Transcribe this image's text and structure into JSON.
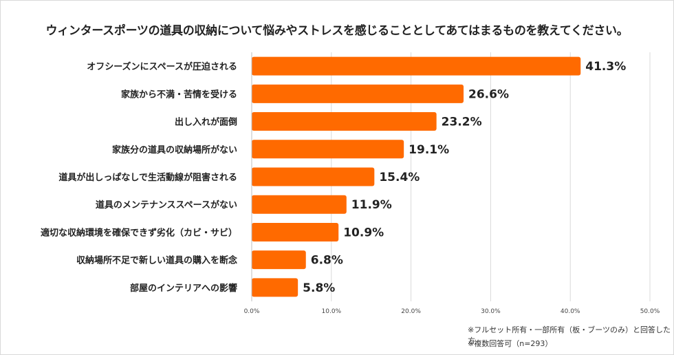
{
  "chart_data": {
    "type": "bar",
    "orientation": "horizontal",
    "title": "ウィンタースポーツの道具の収納について悩みやストレスを感じることとしてあてはまるものを教えてください。",
    "categories": [
      "オフシーズンにスペースが圧迫される",
      "家族から不満・苦情を受ける",
      "出し入れが面倒",
      "家族分の道具の収納場所がない",
      "道具が出しっぱなしで生活動線が阻害される",
      "道具のメンテナンススペースがない",
      "適切な収納環境を確保できず劣化（カビ・サビ）",
      "収納場所不足で新しい道具の購入を断念",
      "部屋のインテリアへの影響"
    ],
    "values": [
      41.3,
      26.6,
      23.2,
      19.1,
      15.4,
      11.9,
      10.9,
      6.8,
      5.8
    ],
    "value_labels": [
      "41.3%",
      "26.6%",
      "23.2%",
      "19.1%",
      "15.4%",
      "11.9%",
      "10.9%",
      "6.8%",
      "5.8%"
    ],
    "xlim": [
      0,
      50
    ],
    "xticks": [
      "0.0%",
      "10.0%",
      "20.0%",
      "30.0%",
      "40.0%",
      "50.0%"
    ],
    "bar_color": "#ff6a00",
    "grid": true
  },
  "notes": {
    "line1": "※フルセット所有・一部所有（板・ブーツのみ）と回答した方",
    "line2": "※複数回答可（n=293）"
  }
}
